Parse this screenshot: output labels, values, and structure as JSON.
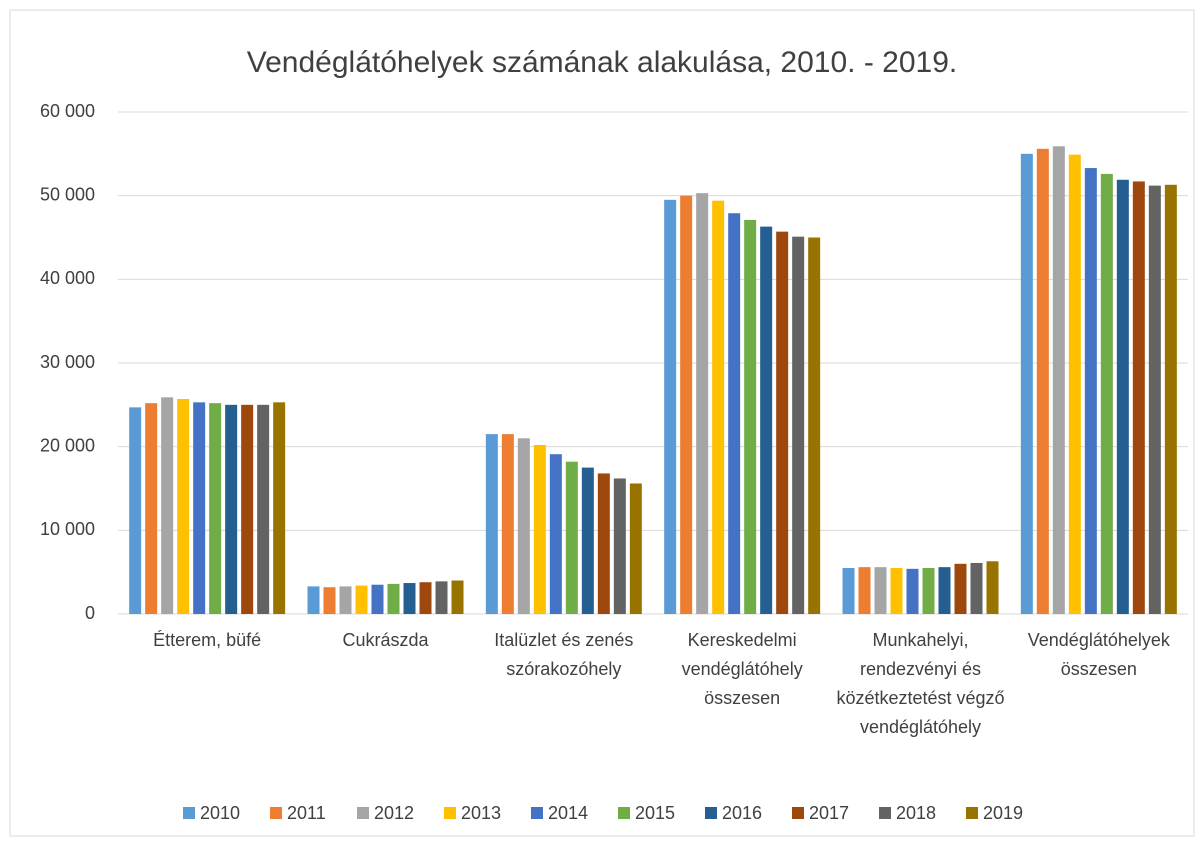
{
  "chart_data": {
    "type": "bar",
    "title": "Vendéglátóhelyek számának alakulása, 2010. - 2019.",
    "categories": [
      "Étterem, büfé",
      "Cukrászda",
      "Italüzlet és zenés szórakozóhely",
      "Kereskedelmi vendéglátóhely összesen",
      "Munkahelyi, rendezvényi és közétkeztetést végző vendéglátóhely",
      "Vendéglátóhelyek összesen"
    ],
    "series": [
      {
        "name": "2010",
        "color": "#5b9bd5",
        "values": [
          24700,
          3300,
          21500,
          49500,
          5500,
          55000
        ]
      },
      {
        "name": "2011",
        "color": "#ed7d31",
        "values": [
          25200,
          3200,
          21500,
          50000,
          5600,
          55600
        ]
      },
      {
        "name": "2012",
        "color": "#a5a5a5",
        "values": [
          25900,
          3300,
          21000,
          50300,
          5600,
          55900
        ]
      },
      {
        "name": "2013",
        "color": "#ffc000",
        "values": [
          25700,
          3400,
          20200,
          49400,
          5500,
          54900
        ]
      },
      {
        "name": "2014",
        "color": "#4472c4",
        "values": [
          25300,
          3500,
          19100,
          47900,
          5400,
          53300
        ]
      },
      {
        "name": "2015",
        "color": "#70ad47",
        "values": [
          25200,
          3600,
          18200,
          47100,
          5500,
          52600
        ]
      },
      {
        "name": "2016",
        "color": "#255e91",
        "values": [
          25000,
          3700,
          17500,
          46300,
          5600,
          51900
        ]
      },
      {
        "name": "2017",
        "color": "#9e480e",
        "values": [
          25000,
          3800,
          16800,
          45700,
          6000,
          51700
        ]
      },
      {
        "name": "2018",
        "color": "#636363",
        "values": [
          25000,
          3900,
          16200,
          45100,
          6100,
          51200
        ]
      },
      {
        "name": "2019",
        "color": "#997300",
        "values": [
          25300,
          4000,
          15600,
          45000,
          6300,
          51300
        ]
      }
    ],
    "ylim": [
      0,
      60000
    ],
    "yticks": [
      0,
      {
        "value": 10000,
        "label": "10 000"
      },
      {
        "value": 20000,
        "label": "20 000"
      },
      {
        "value": 30000,
        "label": "30 000"
      },
      {
        "value": 40000,
        "label": "40 000"
      },
      {
        "value": 50000,
        "label": "50 000"
      },
      {
        "value": 60000,
        "label": "60 000"
      }
    ],
    "grid": true
  }
}
